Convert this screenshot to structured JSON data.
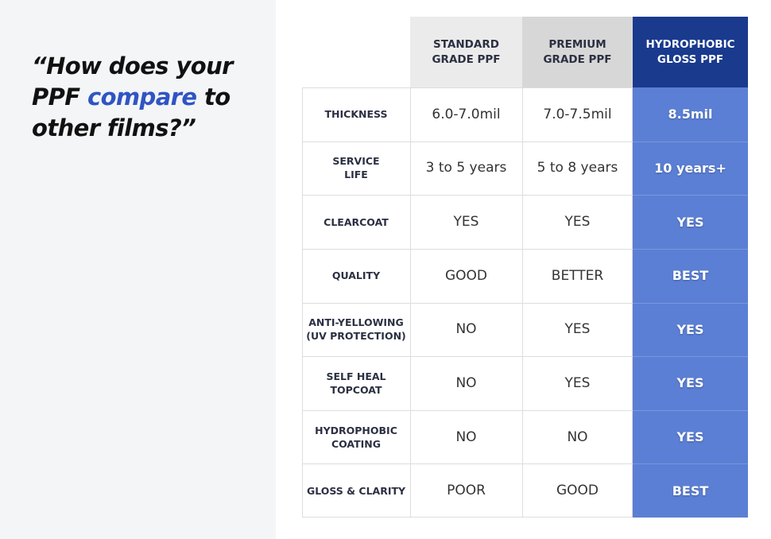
{
  "heading": {
    "before": "“How does your PPF ",
    "highlight": "compare",
    "after": " to other films?”"
  },
  "colors": {
    "highlight": "#2f55c4",
    "hydrophobic_header": "#1a3a8e",
    "hydrophobic_column": "#5b7fd4",
    "standard_header": "#ebebeb",
    "premium_header": "#d7d7d7"
  },
  "table": {
    "columns": [
      "STANDARD\nGRADE PPF",
      "PREMIUM\nGRADE PPF",
      "HYDROPHOBIC\nGLOSS PPF"
    ],
    "rows": [
      {
        "label": "THICKNESS",
        "standard": "6.0-7.0mil",
        "premium": "7.0-7.5mil",
        "hydrophobic": "8.5mil"
      },
      {
        "label": "SERVICE\nLIFE",
        "standard": "3 to 5 years",
        "premium": "5 to 8 years",
        "hydrophobic": "10 years+"
      },
      {
        "label": "CLEARCOAT",
        "standard": "YES",
        "premium": "YES",
        "hydrophobic": "YES"
      },
      {
        "label": "QUALITY",
        "standard": "GOOD",
        "premium": "BETTER",
        "hydrophobic": "BEST"
      },
      {
        "label": "ANTI-YELLOWING\n(UV PROTECTION)",
        "standard": "NO",
        "premium": "YES",
        "hydrophobic": "YES"
      },
      {
        "label": "SELF HEAL\nTOPCOAT",
        "standard": "NO",
        "premium": "YES",
        "hydrophobic": "YES"
      },
      {
        "label": "HYDROPHOBIC\nCOATING",
        "standard": "NO",
        "premium": "NO",
        "hydrophobic": "YES"
      },
      {
        "label": "GLOSS & CLARITY",
        "standard": "POOR",
        "premium": "GOOD",
        "hydrophobic": "BEST"
      }
    ]
  }
}
